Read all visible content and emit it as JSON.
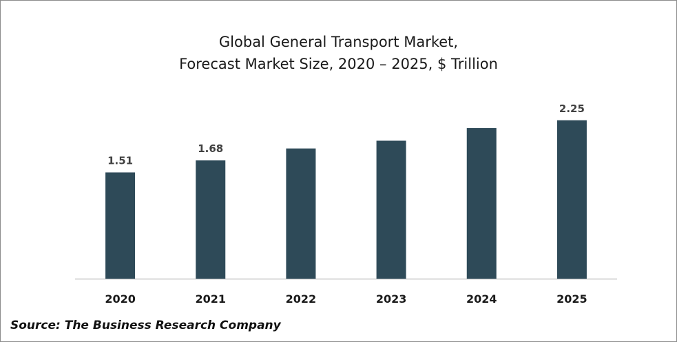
{
  "chart_data": {
    "type": "bar",
    "title": [
      "Global General Transport Market,",
      "Forecast Market Size, 2020 – 2025, $ Trillion"
    ],
    "categories": [
      "2020",
      "2021",
      "2022",
      "2023",
      "2024",
      "2025"
    ],
    "values": [
      1.51,
      1.68,
      1.85,
      1.96,
      2.14,
      2.25
    ],
    "data_labels": [
      "1.51",
      "1.68",
      "",
      "",
      "",
      "2.25"
    ],
    "xlabel": "",
    "ylabel": "",
    "ylim": [
      0,
      2.6
    ],
    "grid": false,
    "bar_color": "#2e4a58",
    "axis_color": "#d9d9d9"
  },
  "source": "Source: The Business Research Company"
}
